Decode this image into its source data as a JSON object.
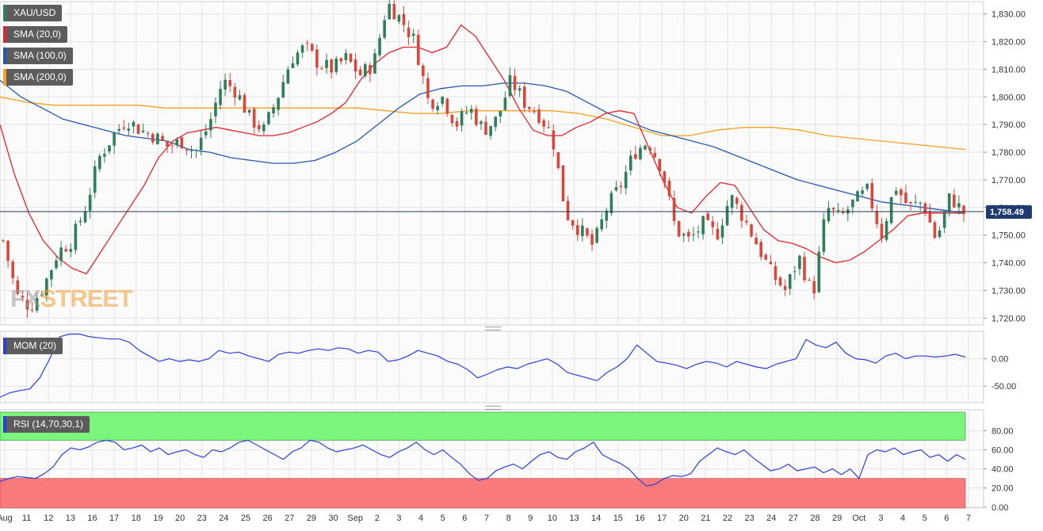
{
  "legends": {
    "symbol": "XAU/USD",
    "sma20": "SMA (20,0)",
    "sma100": "SMA (100,0)",
    "sma200": "SMA (200,0)",
    "mom": "MOM (20)",
    "rsi": "RSI (14,70,30,1)"
  },
  "logo": {
    "part1": "FX",
    "part2": "STREET"
  },
  "colors": {
    "up": "#2e7d5b",
    "down": "#d9473b",
    "sma20": "#e3242b",
    "sma100": "#2458b0",
    "sma200": "#f5a020",
    "momentum": "#2a3fd6",
    "rsi": "#2a3fd6",
    "overbought": "#7cf57c",
    "oversold": "#f87a7a",
    "price_line": "#1f3555",
    "price_label_bg": "#1f3a6e"
  },
  "chart_data": [
    {
      "type": "candlestick",
      "title": "XAU/USD",
      "x_labels": [
        "Aug",
        "11",
        "12",
        "13",
        "16",
        "17",
        "18",
        "19",
        "20",
        "23",
        "24",
        "25",
        "26",
        "27",
        "29",
        "30",
        "Sep",
        "2",
        "3",
        "4",
        "5",
        "6",
        "7",
        "8",
        "9",
        "10",
        "13",
        "14",
        "15",
        "16",
        "17",
        "20",
        "21",
        "22",
        "23",
        "24",
        "27",
        "28",
        "29",
        "Oct",
        "3",
        "4",
        "5",
        "6",
        "7"
      ],
      "y_ticks": [
        "1,720.00",
        "1,730.00",
        "1,740.00",
        "1,750.00",
        "1,760.00",
        "1,770.00",
        "1,780.00",
        "1,790.00",
        "1,800.00",
        "1,810.00",
        "1,820.00",
        "1,830.00"
      ],
      "ylim": [
        1717.5,
        1834.5
      ],
      "last_price": "1,758.49",
      "close_path": [
        1748,
        1728,
        1724,
        1732,
        1744,
        1748,
        1760,
        1778,
        1786,
        1792,
        1788,
        1786,
        1782,
        1784,
        1780,
        1790,
        1806,
        1802,
        1792,
        1788,
        1800,
        1814,
        1818,
        1812,
        1810,
        1814,
        1808,
        1812,
        1834,
        1828,
        1820,
        1798,
        1800,
        1790,
        1796,
        1788,
        1792,
        1806,
        1798,
        1794,
        1786,
        1758,
        1752,
        1746,
        1760,
        1768,
        1780,
        1784,
        1774,
        1752,
        1748,
        1754,
        1750,
        1764,
        1756,
        1746,
        1736,
        1730,
        1742,
        1728,
        1760,
        1756,
        1762,
        1766,
        1750,
        1768,
        1760,
        1762,
        1748,
        1764,
        1758
      ],
      "sma20": [
        1790,
        1772,
        1758,
        1748,
        1742,
        1738,
        1736,
        1744,
        1752,
        1760,
        1768,
        1778,
        1784,
        1787,
        1788,
        1789,
        1788,
        1787,
        1786,
        1786,
        1787,
        1789,
        1791,
        1794,
        1798,
        1806,
        1812,
        1816,
        1818,
        1818,
        1816,
        1818,
        1826,
        1822,
        1814,
        1806,
        1796,
        1788,
        1786,
        1786,
        1789,
        1791,
        1794,
        1795,
        1794,
        1782,
        1770,
        1760,
        1758,
        1764,
        1769,
        1768,
        1760,
        1752,
        1748,
        1747,
        1745,
        1742,
        1740,
        1741,
        1744,
        1748,
        1752,
        1757,
        1758,
        1758,
        1758,
        1758
      ],
      "sma100": [
        1806,
        1800,
        1796,
        1792,
        1790,
        1788,
        1786,
        1785,
        1784,
        1781,
        1780,
        1778,
        1777,
        1776,
        1776,
        1777,
        1780,
        1784,
        1790,
        1796,
        1801,
        1803,
        1804,
        1804,
        1805,
        1805,
        1804,
        1802,
        1798,
        1794,
        1791,
        1788,
        1786,
        1784,
        1782,
        1779,
        1776,
        1773,
        1770,
        1768,
        1766,
        1764,
        1762,
        1761,
        1760,
        1759,
        1758
      ],
      "sma200": [
        1800,
        1798,
        1797,
        1797,
        1797,
        1797,
        1796,
        1796,
        1796,
        1796,
        1796,
        1796,
        1796,
        1796,
        1795,
        1794,
        1794,
        1795,
        1795,
        1795,
        1795,
        1794,
        1792,
        1789,
        1786,
        1786,
        1788,
        1789,
        1789,
        1788,
        1786,
        1785,
        1784,
        1783,
        1782,
        1781
      ]
    },
    {
      "type": "line",
      "title": "MOM (20)",
      "y_ticks": [
        "0.00",
        "-50.00"
      ],
      "ylim": [
        -80,
        50
      ],
      "series": [
        {
          "name": "MOM (20)",
          "values": [
            -70,
            -62,
            -58,
            -55,
            -35,
            0,
            40,
            45,
            45,
            40,
            38,
            36,
            36,
            30,
            15,
            5,
            -5,
            0,
            -5,
            -2,
            -5,
            0,
            15,
            10,
            12,
            5,
            0,
            -5,
            8,
            12,
            10,
            15,
            18,
            15,
            20,
            18,
            10,
            15,
            12,
            -5,
            -2,
            5,
            15,
            10,
            5,
            -5,
            -10,
            -20,
            -35,
            -28,
            -20,
            -15,
            -18,
            -10,
            -5,
            0,
            -10,
            -25,
            -30,
            -35,
            -40,
            -25,
            -15,
            0,
            25,
            10,
            -5,
            -8,
            -12,
            -18,
            -10,
            -5,
            -8,
            -15,
            -5,
            -10,
            -15,
            -18,
            -10,
            -5,
            0,
            35,
            25,
            20,
            30,
            10,
            0,
            -2,
            -8,
            5,
            10,
            0,
            5,
            5,
            3,
            5,
            8,
            3
          ]
        }
      ]
    },
    {
      "type": "line",
      "title": "RSI (14,70,30,1)",
      "y_ticks": [
        "0.00",
        "20.00",
        "40.00",
        "60.00",
        "80.00"
      ],
      "ylim": [
        -1,
        102
      ],
      "overbought": 70,
      "oversold": 30,
      "series": [
        {
          "name": "RSI (14,70,30,1)",
          "values": [
            27,
            30,
            32,
            31,
            30,
            35,
            42,
            55,
            62,
            60,
            63,
            68,
            70,
            68,
            60,
            62,
            65,
            58,
            62,
            55,
            58,
            60,
            55,
            52,
            60,
            58,
            62,
            68,
            70,
            65,
            60,
            55,
            50,
            58,
            62,
            70,
            68,
            62,
            58,
            60,
            62,
            65,
            60,
            55,
            52,
            58,
            62,
            68,
            60,
            55,
            60,
            52,
            45,
            35,
            28,
            30,
            38,
            42,
            45,
            40,
            48,
            55,
            58,
            52,
            50,
            58,
            62,
            68,
            55,
            50,
            46,
            40,
            30,
            22,
            24,
            30,
            33,
            32,
            35,
            48,
            55,
            62,
            58,
            55,
            60,
            52,
            45,
            38,
            40,
            45,
            38,
            40,
            42,
            36,
            40,
            34,
            40,
            30,
            55,
            60,
            58,
            62,
            55,
            58,
            60,
            52,
            55,
            48,
            55,
            50
          ]
        }
      ]
    }
  ]
}
